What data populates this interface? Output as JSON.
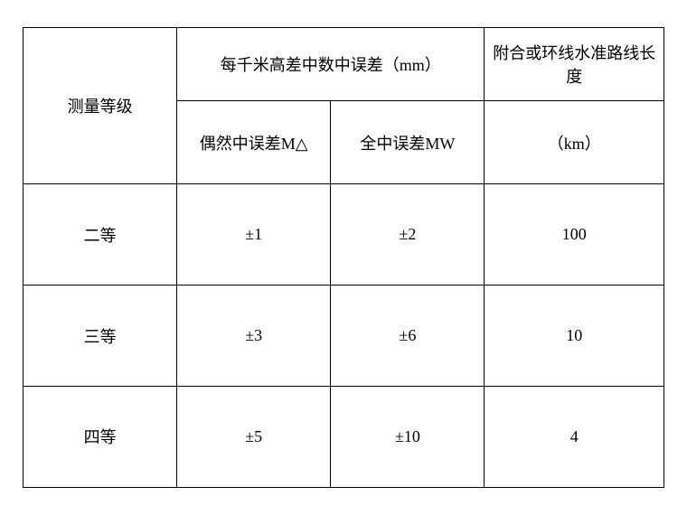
{
  "table": {
    "type": "table",
    "header": {
      "col1": "测量等级",
      "col_group_23": "每千米高差中数中误差（mm）",
      "col2_sub": "偶然中误差M△",
      "col3_sub": "全中误差MW",
      "col4_top": "附合或环线水准路线长度",
      "col4_sub": "（km）"
    },
    "rows": [
      {
        "grade": "二等",
        "random_error": "±1",
        "total_error": "±2",
        "length": "100"
      },
      {
        "grade": "三等",
        "random_error": "±3",
        "total_error": "±6",
        "length": "10"
      },
      {
        "grade": "四等",
        "random_error": "±5",
        "total_error": "±10",
        "length": "4"
      }
    ],
    "styling": {
      "border_color": "#000000",
      "border_width": 1.5,
      "background_color": "#ffffff",
      "text_color": "#000000",
      "font_size": 18,
      "font_family": "SimSun"
    }
  }
}
